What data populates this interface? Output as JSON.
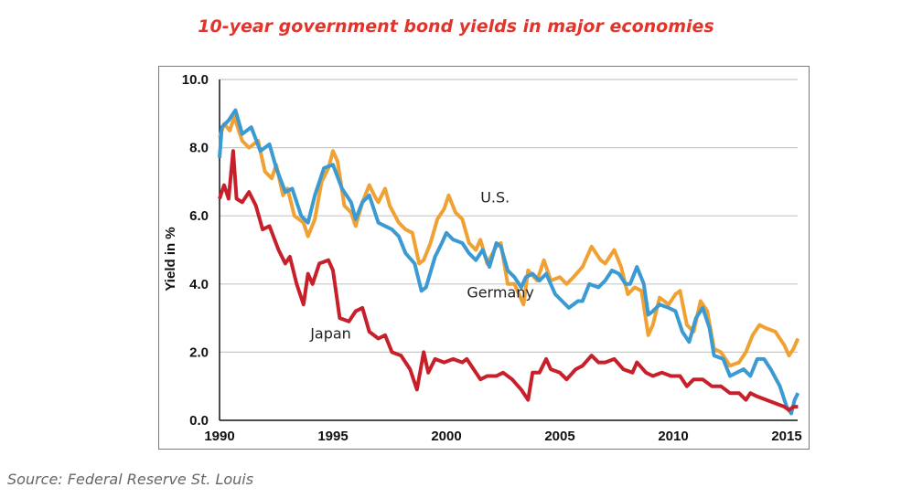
{
  "chart_data": {
    "type": "line",
    "title": "10-year government bond yields in major economies",
    "xlabel": "",
    "ylabel": "Yield in %",
    "xlim": [
      1990,
      2015.5
    ],
    "ylim": [
      0,
      10
    ],
    "x_ticks": [
      "1990",
      "1995",
      "2000",
      "2005",
      "2010",
      "2015"
    ],
    "y_ticks": [
      "0.0",
      "2.0",
      "4.0",
      "6.0",
      "8.0",
      "10.0"
    ],
    "grid": "horizontal",
    "source": "Source: Federal Reserve St. Louis",
    "series": [
      {
        "name": "U.S.",
        "color": "#f0a134",
        "points": [
          [
            1990,
            8.3
          ],
          [
            1990.2,
            8.7
          ],
          [
            1990.45,
            8.5
          ],
          [
            1990.65,
            8.9
          ],
          [
            1991,
            8.2
          ],
          [
            1991.3,
            8.0
          ],
          [
            1991.7,
            8.2
          ],
          [
            1992,
            7.3
          ],
          [
            1992.3,
            7.1
          ],
          [
            1992.5,
            7.5
          ],
          [
            1992.8,
            6.6
          ],
          [
            1993,
            6.8
          ],
          [
            1993.3,
            6.0
          ],
          [
            1993.7,
            5.8
          ],
          [
            1993.9,
            5.4
          ],
          [
            1994.2,
            5.9
          ],
          [
            1994.5,
            7.0
          ],
          [
            1994.8,
            7.4
          ],
          [
            1995,
            7.9
          ],
          [
            1995.2,
            7.6
          ],
          [
            1995.5,
            6.3
          ],
          [
            1995.8,
            6.1
          ],
          [
            1996,
            5.7
          ],
          [
            1996.3,
            6.4
          ],
          [
            1996.6,
            6.9
          ],
          [
            1996.9,
            6.5
          ],
          [
            1997,
            6.4
          ],
          [
            1997.3,
            6.8
          ],
          [
            1997.5,
            6.3
          ],
          [
            1997.9,
            5.8
          ],
          [
            1998.2,
            5.6
          ],
          [
            1998.5,
            5.5
          ],
          [
            1998.8,
            4.6
          ],
          [
            1999,
            4.7
          ],
          [
            1999.3,
            5.2
          ],
          [
            1999.6,
            5.9
          ],
          [
            1999.9,
            6.2
          ],
          [
            2000.1,
            6.6
          ],
          [
            2000.4,
            6.1
          ],
          [
            2000.7,
            5.9
          ],
          [
            2001,
            5.2
          ],
          [
            2001.3,
            5.0
          ],
          [
            2001.5,
            5.3
          ],
          [
            2001.8,
            4.6
          ],
          [
            2002.2,
            5.1
          ],
          [
            2002.4,
            5.2
          ],
          [
            2002.7,
            4.0
          ],
          [
            2003,
            4.0
          ],
          [
            2003.4,
            3.4
          ],
          [
            2003.6,
            4.4
          ],
          [
            2004,
            4.1
          ],
          [
            2004.3,
            4.7
          ],
          [
            2004.6,
            4.1
          ],
          [
            2005,
            4.2
          ],
          [
            2005.3,
            4.0
          ],
          [
            2005.6,
            4.2
          ],
          [
            2006,
            4.5
          ],
          [
            2006.4,
            5.1
          ],
          [
            2006.8,
            4.7
          ],
          [
            2007,
            4.6
          ],
          [
            2007.4,
            5.0
          ],
          [
            2007.7,
            4.5
          ],
          [
            2008,
            3.7
          ],
          [
            2008.3,
            3.9
          ],
          [
            2008.6,
            3.8
          ],
          [
            2008.9,
            2.5
          ],
          [
            2009.1,
            2.8
          ],
          [
            2009.4,
            3.6
          ],
          [
            2009.8,
            3.4
          ],
          [
            2010.1,
            3.7
          ],
          [
            2010.3,
            3.8
          ],
          [
            2010.6,
            2.8
          ],
          [
            2010.9,
            2.6
          ],
          [
            2011.2,
            3.5
          ],
          [
            2011.5,
            3.2
          ],
          [
            2011.8,
            2.1
          ],
          [
            2012.1,
            2.0
          ],
          [
            2012.5,
            1.6
          ],
          [
            2012.9,
            1.7
          ],
          [
            2013.2,
            2.0
          ],
          [
            2013.5,
            2.5
          ],
          [
            2013.8,
            2.8
          ],
          [
            2014.1,
            2.7
          ],
          [
            2014.5,
            2.6
          ],
          [
            2014.9,
            2.2
          ],
          [
            2015.1,
            1.9
          ],
          [
            2015.3,
            2.1
          ],
          [
            2015.5,
            2.4
          ]
        ]
      },
      {
        "name": "Germany",
        "color": "#3b9ad2",
        "points": [
          [
            1990,
            7.7
          ],
          [
            1990.1,
            8.6
          ],
          [
            1990.4,
            8.8
          ],
          [
            1990.7,
            9.1
          ],
          [
            1991,
            8.4
          ],
          [
            1991.4,
            8.6
          ],
          [
            1991.8,
            7.9
          ],
          [
            1992.2,
            8.1
          ],
          [
            1992.5,
            7.4
          ],
          [
            1992.9,
            6.7
          ],
          [
            1993.2,
            6.8
          ],
          [
            1993.6,
            6.0
          ],
          [
            1993.9,
            5.8
          ],
          [
            1994.2,
            6.6
          ],
          [
            1994.6,
            7.4
          ],
          [
            1995,
            7.5
          ],
          [
            1995.4,
            6.8
          ],
          [
            1995.8,
            6.4
          ],
          [
            1996,
            5.9
          ],
          [
            1996.3,
            6.4
          ],
          [
            1996.6,
            6.6
          ],
          [
            1997,
            5.8
          ],
          [
            1997.3,
            5.7
          ],
          [
            1997.6,
            5.6
          ],
          [
            1997.9,
            5.4
          ],
          [
            1998.2,
            4.9
          ],
          [
            1998.6,
            4.6
          ],
          [
            1998.9,
            3.8
          ],
          [
            1999.1,
            3.9
          ],
          [
            1999.5,
            4.8
          ],
          [
            1999.8,
            5.2
          ],
          [
            2000,
            5.5
          ],
          [
            2000.3,
            5.3
          ],
          [
            2000.7,
            5.2
          ],
          [
            2001,
            4.9
          ],
          [
            2001.3,
            4.7
          ],
          [
            2001.6,
            5.0
          ],
          [
            2001.9,
            4.5
          ],
          [
            2002.2,
            5.2
          ],
          [
            2002.4,
            5.1
          ],
          [
            2002.7,
            4.4
          ],
          [
            2003,
            4.2
          ],
          [
            2003.3,
            3.9
          ],
          [
            2003.5,
            4.2
          ],
          [
            2003.8,
            4.3
          ],
          [
            2004.1,
            4.1
          ],
          [
            2004.4,
            4.3
          ],
          [
            2004.8,
            3.7
          ],
          [
            2005.1,
            3.5
          ],
          [
            2005.4,
            3.3
          ],
          [
            2005.8,
            3.5
          ],
          [
            2006,
            3.5
          ],
          [
            2006.3,
            4.0
          ],
          [
            2006.7,
            3.9
          ],
          [
            2007,
            4.1
          ],
          [
            2007.3,
            4.4
          ],
          [
            2007.6,
            4.3
          ],
          [
            2007.9,
            4.0
          ],
          [
            2008.1,
            4.0
          ],
          [
            2008.4,
            4.5
          ],
          [
            2008.7,
            4.0
          ],
          [
            2008.9,
            3.1
          ],
          [
            2009.1,
            3.2
          ],
          [
            2009.4,
            3.4
          ],
          [
            2009.8,
            3.3
          ],
          [
            2010.1,
            3.2
          ],
          [
            2010.4,
            2.6
          ],
          [
            2010.7,
            2.3
          ],
          [
            2011,
            3.0
          ],
          [
            2011.3,
            3.3
          ],
          [
            2011.6,
            2.7
          ],
          [
            2011.8,
            1.9
          ],
          [
            2012.2,
            1.8
          ],
          [
            2012.5,
            1.3
          ],
          [
            2012.8,
            1.4
          ],
          [
            2013.1,
            1.5
          ],
          [
            2013.4,
            1.3
          ],
          [
            2013.7,
            1.8
          ],
          [
            2014,
            1.8
          ],
          [
            2014.3,
            1.5
          ],
          [
            2014.7,
            1.0
          ],
          [
            2015,
            0.4
          ],
          [
            2015.2,
            0.2
          ],
          [
            2015.35,
            0.6
          ],
          [
            2015.5,
            0.8
          ]
        ]
      },
      {
        "name": "Japan",
        "color": "#c8202b",
        "points": [
          [
            1990,
            6.5
          ],
          [
            1990.2,
            6.9
          ],
          [
            1990.4,
            6.5
          ],
          [
            1990.6,
            7.9
          ],
          [
            1990.75,
            6.5
          ],
          [
            1991,
            6.4
          ],
          [
            1991.3,
            6.7
          ],
          [
            1991.6,
            6.3
          ],
          [
            1991.9,
            5.6
          ],
          [
            1992.2,
            5.7
          ],
          [
            1992.6,
            5.0
          ],
          [
            1992.9,
            4.6
          ],
          [
            1993.1,
            4.8
          ],
          [
            1993.4,
            4.0
          ],
          [
            1993.7,
            3.4
          ],
          [
            1993.9,
            4.3
          ],
          [
            1994.1,
            4.0
          ],
          [
            1994.4,
            4.6
          ],
          [
            1994.8,
            4.7
          ],
          [
            1995,
            4.4
          ],
          [
            1995.3,
            3.0
          ],
          [
            1995.7,
            2.9
          ],
          [
            1996,
            3.2
          ],
          [
            1996.3,
            3.3
          ],
          [
            1996.6,
            2.6
          ],
          [
            1997,
            2.4
          ],
          [
            1997.3,
            2.5
          ],
          [
            1997.6,
            2.0
          ],
          [
            1998,
            1.9
          ],
          [
            1998.4,
            1.5
          ],
          [
            1998.7,
            0.9
          ],
          [
            1999,
            2.0
          ],
          [
            1999.2,
            1.4
          ],
          [
            1999.5,
            1.8
          ],
          [
            1999.9,
            1.7
          ],
          [
            2000.3,
            1.8
          ],
          [
            2000.7,
            1.7
          ],
          [
            2000.9,
            1.8
          ],
          [
            2001.2,
            1.5
          ],
          [
            2001.5,
            1.2
          ],
          [
            2001.8,
            1.3
          ],
          [
            2002.2,
            1.3
          ],
          [
            2002.5,
            1.4
          ],
          [
            2002.9,
            1.2
          ],
          [
            2003.3,
            0.9
          ],
          [
            2003.6,
            0.6
          ],
          [
            2003.8,
            1.4
          ],
          [
            2004.1,
            1.4
          ],
          [
            2004.4,
            1.8
          ],
          [
            2004.6,
            1.5
          ],
          [
            2005,
            1.4
          ],
          [
            2005.3,
            1.2
          ],
          [
            2005.7,
            1.5
          ],
          [
            2006,
            1.6
          ],
          [
            2006.4,
            1.9
          ],
          [
            2006.7,
            1.7
          ],
          [
            2007,
            1.7
          ],
          [
            2007.4,
            1.8
          ],
          [
            2007.8,
            1.5
          ],
          [
            2008.2,
            1.4
          ],
          [
            2008.4,
            1.7
          ],
          [
            2008.8,
            1.4
          ],
          [
            2009.1,
            1.3
          ],
          [
            2009.5,
            1.4
          ],
          [
            2009.9,
            1.3
          ],
          [
            2010.3,
            1.3
          ],
          [
            2010.6,
            1.0
          ],
          [
            2010.9,
            1.2
          ],
          [
            2011.3,
            1.2
          ],
          [
            2011.7,
            1.0
          ],
          [
            2012.1,
            1.0
          ],
          [
            2012.5,
            0.8
          ],
          [
            2012.9,
            0.8
          ],
          [
            2013.2,
            0.6
          ],
          [
            2013.4,
            0.8
          ],
          [
            2013.7,
            0.7
          ],
          [
            2014.1,
            0.6
          ],
          [
            2014.5,
            0.5
          ],
          [
            2014.9,
            0.4
          ],
          [
            2015.1,
            0.3
          ],
          [
            2015.3,
            0.4
          ],
          [
            2015.5,
            0.4
          ]
        ]
      }
    ],
    "annotations": [
      {
        "text": "U.S.",
        "series": "U.S.",
        "at": [
          2001.5,
          6.4
        ]
      },
      {
        "text": "Germany",
        "series": "Germany",
        "at": [
          2000.9,
          3.6
        ]
      },
      {
        "text": "Japan",
        "series": "Japan",
        "at": [
          1994,
          2.4
        ]
      }
    ]
  }
}
